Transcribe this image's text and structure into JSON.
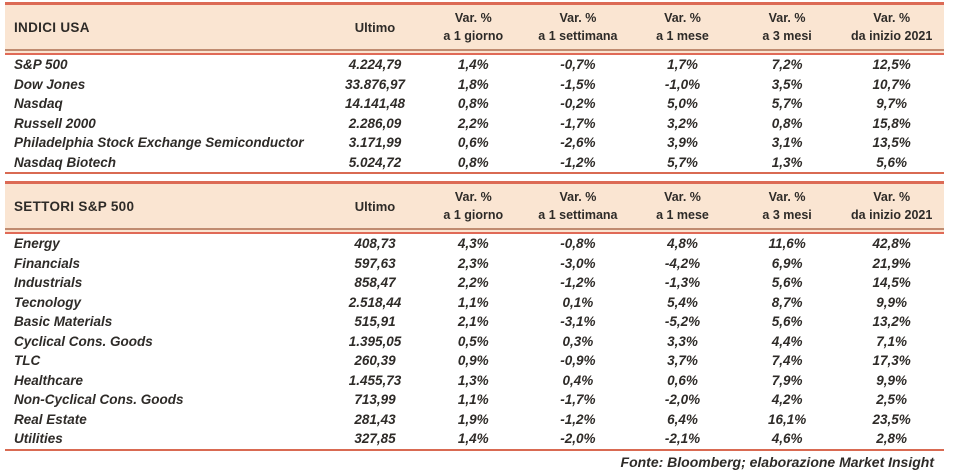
{
  "page": {
    "source_note": "Fonte: Bloomberg; elaborazione Market Insight"
  },
  "colors": {
    "header_bg": "#fae5d2",
    "border_salmon": "#dc6a55",
    "border_brown": "#c08b70",
    "text": "#2e2b28"
  },
  "chart_data": [
    {
      "type": "table",
      "title": "INDICI USA",
      "ultimo_header": "Ultimo",
      "var_headers": [
        {
          "top": "Var. %",
          "bottom": "a 1 giorno"
        },
        {
          "top": "Var. %",
          "bottom": "a 1 settimana"
        },
        {
          "top": "Var. %",
          "bottom": "a 1 mese"
        },
        {
          "top": "Var. %",
          "bottom": "a 3 mesi"
        },
        {
          "top": "Var. %",
          "bottom": "da inizio 2021"
        }
      ],
      "rows": [
        [
          "S&P 500",
          "4.224,79",
          "1,4%",
          "-0,7%",
          "1,7%",
          "7,2%",
          "12,5%"
        ],
        [
          "Dow Jones",
          "33.876,97",
          "1,8%",
          "-1,5%",
          "-1,0%",
          "3,5%",
          "10,7%"
        ],
        [
          "Nasdaq",
          "14.141,48",
          "0,8%",
          "-0,2%",
          "5,0%",
          "5,7%",
          "9,7%"
        ],
        [
          "Russell 2000",
          "2.286,09",
          "2,2%",
          "-1,7%",
          "3,2%",
          "0,8%",
          "15,8%"
        ],
        [
          "Philadelphia Stock Exchange Semiconductor",
          "3.171,99",
          "0,6%",
          "-2,6%",
          "3,9%",
          "3,1%",
          "13,5%"
        ],
        [
          "Nasdaq Biotech",
          "5.024,72",
          "0,8%",
          "-1,2%",
          "5,7%",
          "1,3%",
          "5,6%"
        ]
      ]
    },
    {
      "type": "table",
      "title": "SETTORI S&P 500",
      "ultimo_header": "Ultimo",
      "var_headers": [
        {
          "top": "Var. %",
          "bottom": "a 1 giorno"
        },
        {
          "top": "Var. %",
          "bottom": "a 1 settimana"
        },
        {
          "top": "Var. %",
          "bottom": "a 1 mese"
        },
        {
          "top": "Var. %",
          "bottom": "a 3 mesi"
        },
        {
          "top": "Var. %",
          "bottom": "da inizio 2021"
        }
      ],
      "rows": [
        [
          "Energy",
          "408,73",
          "4,3%",
          "-0,8%",
          "4,8%",
          "11,6%",
          "42,8%"
        ],
        [
          "Financials",
          "597,63",
          "2,3%",
          "-3,0%",
          "-4,2%",
          "6,9%",
          "21,9%"
        ],
        [
          "Industrials",
          "858,47",
          "2,2%",
          "-1,2%",
          "-1,3%",
          "5,6%",
          "14,5%"
        ],
        [
          "Tecnology",
          "2.518,44",
          "1,1%",
          "0,1%",
          "5,4%",
          "8,7%",
          "9,9%"
        ],
        [
          "Basic Materials",
          "515,91",
          "2,1%",
          "-3,1%",
          "-5,2%",
          "5,6%",
          "13,2%"
        ],
        [
          "Cyclical Cons. Goods",
          "1.395,05",
          "0,5%",
          "0,3%",
          "3,3%",
          "4,4%",
          "7,1%"
        ],
        [
          "TLC",
          "260,39",
          "0,9%",
          "-0,9%",
          "3,7%",
          "7,4%",
          "17,3%"
        ],
        [
          "Healthcare",
          "1.455,73",
          "1,3%",
          "0,4%",
          "0,6%",
          "7,9%",
          "9,9%"
        ],
        [
          "Non-Cyclical Cons. Goods",
          "713,99",
          "1,1%",
          "-1,7%",
          "-2,0%",
          "4,2%",
          "2,5%"
        ],
        [
          "Real Estate",
          "281,43",
          "1,9%",
          "-1,2%",
          "6,4%",
          "16,1%",
          "23,5%"
        ],
        [
          "Utilities",
          "327,85",
          "1,4%",
          "-2,0%",
          "-2,1%",
          "4,6%",
          "2,8%"
        ]
      ]
    }
  ]
}
